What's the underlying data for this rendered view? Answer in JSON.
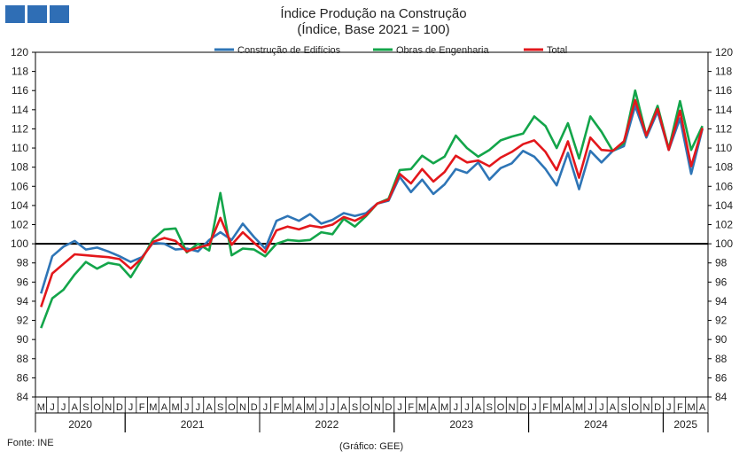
{
  "header": {
    "title": "Índice Produção na Construção",
    "subtitle": "(Índice, Base 2021 = 100)"
  },
  "footer": {
    "source": "Fonte: INE",
    "credit": "(Gráfico: GEE)"
  },
  "colors": {
    "logo": "#2f6eb5",
    "construcao": "#2e75b6",
    "obras": "#13a54a",
    "total": "#e3171b",
    "reference_line": "#000000"
  },
  "chart_data": {
    "type": "line",
    "ylim": [
      84,
      120
    ],
    "yticks": [
      84,
      86,
      88,
      90,
      92,
      94,
      96,
      98,
      100,
      102,
      104,
      106,
      108,
      110,
      112,
      114,
      116,
      118,
      120
    ],
    "reference_line": 100,
    "legend_position": "top-center",
    "x": [
      "M",
      "J",
      "J",
      "A",
      "S",
      "O",
      "N",
      "D",
      "J",
      "F",
      "M",
      "A",
      "M",
      "J",
      "J",
      "A",
      "S",
      "O",
      "N",
      "D",
      "J",
      "F",
      "M",
      "A",
      "M",
      "J",
      "J",
      "A",
      "S",
      "O",
      "N",
      "D",
      "J",
      "F",
      "M",
      "A",
      "M",
      "J",
      "J",
      "A",
      "S",
      "O",
      "N",
      "D",
      "J",
      "F",
      "M",
      "A",
      "M",
      "J",
      "J",
      "A",
      "S",
      "O",
      "N",
      "D",
      "J",
      "F",
      "M",
      "A"
    ],
    "years": [
      {
        "label": "2020",
        "start": 0,
        "count": 8
      },
      {
        "label": "2021",
        "start": 8,
        "count": 12
      },
      {
        "label": "2022",
        "start": 20,
        "count": 12
      },
      {
        "label": "2023",
        "start": 32,
        "count": 12
      },
      {
        "label": "2024",
        "start": 44,
        "count": 12
      },
      {
        "label": "2025",
        "start": 56,
        "count": 4
      }
    ],
    "series": [
      {
        "name": "Construção de Edifícios",
        "color": "#2e75b6",
        "values": [
          94.8,
          98.7,
          99.7,
          100.3,
          99.4,
          99.6,
          99.2,
          98.7,
          98.1,
          98.6,
          100.1,
          100.0,
          99.4,
          99.5,
          99.2,
          100.4,
          101.2,
          100.4,
          102.1,
          100.7,
          99.5,
          102.4,
          102.9,
          102.4,
          103.1,
          102.1,
          102.5,
          103.2,
          102.9,
          103.2,
          104.2,
          104.5,
          107.0,
          105.4,
          106.7,
          105.2,
          106.2,
          107.8,
          107.4,
          108.5,
          106.7,
          107.9,
          108.4,
          109.7,
          109.1,
          107.8,
          106.1,
          109.5,
          105.7,
          109.7,
          108.5,
          109.7,
          110.2,
          114.4,
          111.1,
          113.8,
          109.8,
          113.1,
          107.3,
          112.0
        ]
      },
      {
        "name": "Obras de Engenharia",
        "color": "#13a54a",
        "values": [
          91.2,
          94.3,
          95.2,
          96.8,
          98.1,
          97.4,
          98.0,
          97.8,
          96.5,
          98.4,
          100.5,
          101.5,
          101.6,
          99.1,
          100.0,
          99.3,
          105.3,
          98.8,
          99.5,
          99.4,
          98.7,
          100.0,
          100.4,
          100.3,
          100.4,
          101.2,
          101.0,
          102.6,
          101.8,
          102.9,
          104.2,
          104.7,
          107.7,
          107.8,
          109.2,
          108.4,
          109.1,
          111.3,
          110.0,
          109.1,
          109.8,
          110.8,
          111.2,
          111.5,
          113.3,
          112.3,
          110.0,
          112.6,
          108.9,
          113.3,
          111.7,
          109.7,
          110.5,
          116.0,
          111.3,
          114.4,
          109.9,
          114.9,
          109.8,
          112.3
        ]
      },
      {
        "name": "Total",
        "color": "#e3171b",
        "values": [
          93.4,
          96.9,
          97.9,
          98.9,
          98.8,
          98.7,
          98.6,
          98.4,
          97.4,
          98.5,
          100.2,
          100.6,
          100.3,
          99.2,
          99.6,
          99.9,
          102.7,
          99.9,
          101.2,
          100.1,
          99.1,
          101.4,
          101.8,
          101.5,
          101.9,
          101.7,
          102.0,
          102.8,
          102.4,
          103.0,
          104.2,
          104.6,
          107.3,
          106.3,
          107.8,
          106.5,
          107.5,
          109.2,
          108.5,
          108.7,
          108.1,
          109.0,
          109.6,
          110.4,
          110.8,
          109.6,
          107.7,
          110.7,
          106.9,
          111.1,
          109.8,
          109.7,
          110.7,
          115.0,
          111.3,
          114.1,
          109.8,
          113.9,
          108.1,
          112.1
        ]
      }
    ]
  }
}
